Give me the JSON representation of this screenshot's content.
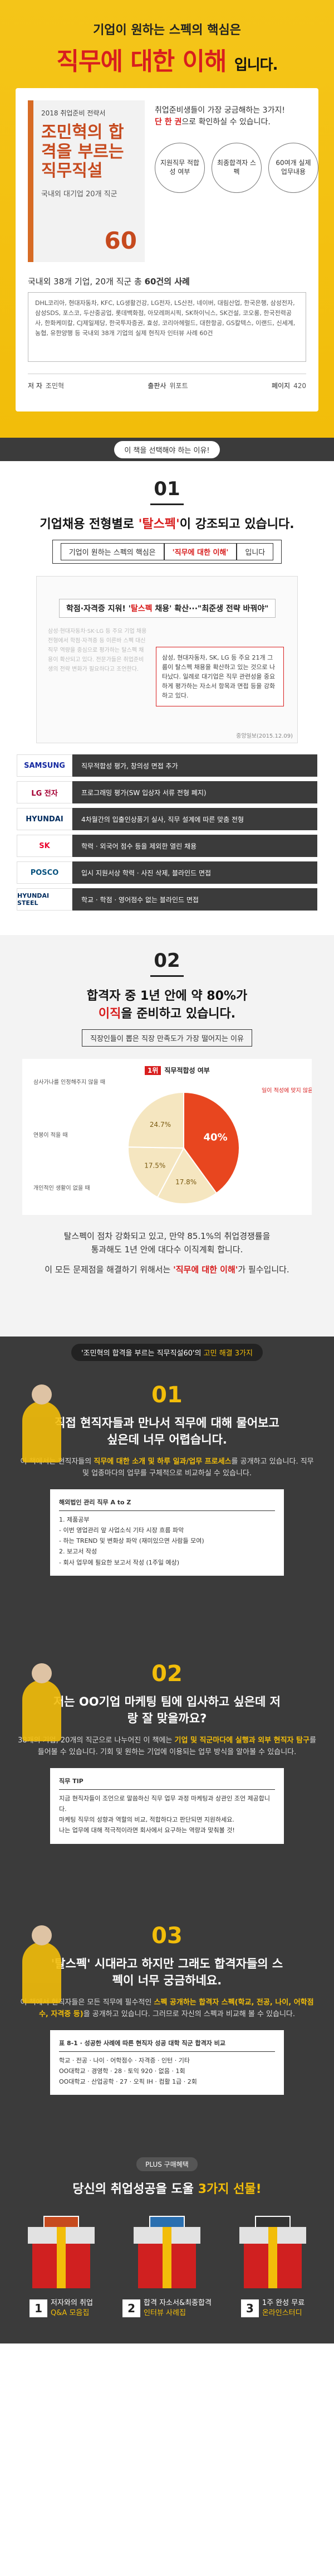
{
  "hero": {
    "headline": "기업이 원하는 스펙의 핵심은",
    "title_hl": "직무에 대한 이해",
    "title_end": "입니다.",
    "book": {
      "series": "2018 취업준비 전략서",
      "title": "조민혁의 합격을 부르는 직무직설",
      "subtitle": "국내외 대기업 20개 직군",
      "badge": "60"
    },
    "intro_1": "취업준비생들이 가장 궁금해하는 3가지!",
    "intro_em": "단 한 권",
    "intro_2": "으로 확인하실 수 있습니다.",
    "circles": [
      "지원직무 적합성 여부",
      "최종합격자 스펙",
      "60여개 실제 업무내용"
    ],
    "case_title_1": "국내외 38개 기업, 20개 직군 총 ",
    "case_title_em": "60건의 사례",
    "case_body": "DHL코리아, 현대자동차, KFC, LG생활건강, LG전자, LS산전, 네이버, 대림산업, 한국은행, 삼성전자, 삼성SDS, 포스코, 두산중공업, 롯데백화점, 아모레퍼시픽, SK하이닉스, SK건설, 코오롱, 한국전력공사, 한화케미칼, CJ제일제당, 한국투자증권, 효성, 코리아헤럴드, 대한항공, GS칼텍스, 이랜드, 신세계, 농협, 유한양행 등 국내외 38개 기업의 실제 현직자 인터뷰 사례 60건",
    "meta": {
      "author_label": "저 자",
      "author": "조민혁",
      "publisher_label": "출판사",
      "publisher": "위포트",
      "pages_label": "페이지",
      "pages": "420"
    }
  },
  "why_pill": "이 책을 선택해야 하는 이유!",
  "s01": {
    "num": "01",
    "head_1": "기업채용 전형별로 ",
    "head_hl": "'탈스펙'",
    "head_2": "이 강조되고 있습니다.",
    "sub_1": "기업이 원하는 스펙의 핵심은 ",
    "sub_em": "'직무에 대한 이해'",
    "sub_2": "입니다",
    "news_tag_1": "학점·자격증 지워! '",
    "news_tag_hl": "탈스펙",
    "news_tag_2": " 채용' 확산···\"최준생 전략 바꿔야\"",
    "news_blur": "삼성·현대자동차·SK·LG 등 주요 기업 채용 전형에서 학점·자격증 등 이른바 스펙 대신 직무 역량을 중심으로 평가하는 탈스펙 채용이 확산되고 있다. 전문가들은 취업준비생의 전략 변화가 필요하다고 조언한다.",
    "news_quote": "삼성, 현대자동차, SK, LG 등 주요 21개 그룹이 탈스펙 채용을 확산하고 있는 것으로 나타났다. 일례로 대기업은 직무 관련성을 중요하게 평가하는 자소서 항목과 면접 등을 강화하고 있다.",
    "news_src": "중앙일보(2015.12.09)",
    "logos": [
      {
        "name": "SAMSUNG",
        "color": "#1428a0",
        "desc": "직무적합성 평가, 창의성 면접 추가"
      },
      {
        "name": "LG 전자",
        "color": "#a50034",
        "desc": "프로그래밍 평가(SW 입상자 서류 전형 폐지)"
      },
      {
        "name": "HYUNDAI",
        "color": "#002c5f",
        "desc": "4차월간의 입출인상품기 실사, 직무 설계에 따른 맞춤 전형"
      },
      {
        "name": "SK",
        "color": "#ea002c",
        "desc": "학력 · 외국어 점수 등을 제외한 열린 채용"
      },
      {
        "name": "POSCO",
        "color": "#05507d",
        "desc": "입시 지원서상 학력 · 사진 삭제, 블라인드 면접"
      },
      {
        "name": "HYUNDAI STEEL",
        "color": "#002c5f",
        "desc": "학교 · 학점 · 영어점수 없는 블라인드 면접"
      }
    ]
  },
  "s02": {
    "num": "02",
    "head_1": "합격자 중 1년 안에 약 80%가",
    "head_hl": "이직",
    "head_2": "을 준비하고 있습니다.",
    "sub": "직장인들이 뽑은 직장 만족도가 가장 떨어지는 이유",
    "chart_rank": "1위",
    "chart_label": "직무적합성 여부",
    "body_1": "탈스펙이 점차 강화되고 있고, 만약 85.1%의 취업경쟁률을",
    "body_2": "통과해도 1년 안에 대다수 이직계획 합니다.",
    "body_3": "이 모든 문제점을 해결하기 위해서는 ",
    "body_em": "'직무에 대한 이해'",
    "body_4": "가 필수입니다."
  },
  "chart_data": {
    "type": "pie",
    "title": "직무적합성 여부",
    "slices": [
      {
        "label": "일이 적성에 맞지 않음 때",
        "value": 40,
        "color": "#e8461f"
      },
      {
        "label": "삼사가나를 인정해주지 않을 때",
        "value": 17.8,
        "color": "#f5e6c0"
      },
      {
        "label": "연봉이 적을 때",
        "value": 17.5,
        "color": "#f5e6c0"
      },
      {
        "label": "개인적인 생활이 없을 때",
        "value": 24.7,
        "color": "#f5e6c0"
      }
    ]
  },
  "secrets_pill_1": "'조민혁의 합격을 부르는 직무직설60'의 ",
  "secrets_pill_hl": "고민 해결 3가지",
  "q1": {
    "num": "01",
    "head": "직접 현직자들과 만나서 직무에 대해 물어보고 싶은데 너무 어렵습니다.",
    "body_1": "이 책에서는 현직자들의 ",
    "body_em": "직무에 대한 소개 및 하루 일과/업무 프로세스",
    "body_2": "를 공개하고 있습니다. 직무 및 업종마다의 업무를 구체적으로 비교하실 수 있습니다.",
    "paper_title": "해외법인 관리 직무 A to Z",
    "paper_lines": [
      "1. 제품공부",
      "- 이번 영업관리 앞 사업소식 기타 시장 흐름 파악",
      "- 하는 TREND 및 변화상 파악 (재미있으면 사람들 모여)",
      "2. 보고서 작성",
      "- 회사 업무에 필요한 보고서 작성 (1주일 예상)"
    ]
  },
  "q2": {
    "num": "02",
    "head": "저는 OO기업 마케팅 팀에 입사하고 싶은데 저랑 잘 맞을까요?",
    "body_1": "38개의 기업, 20개의 직군으로 나누어진 이 책에는 ",
    "body_em": "기업 및 직군마다에 실행과 외부 현직자 탐구",
    "body_2": "를 들어볼 수 있습니다. 기회 및 원하는 기업에 이용되는 업무 방식을 알아볼 수 있습니다.",
    "paper_title": "직무 TIP",
    "paper_lines": [
      "지금 현직자들이 조언으로 말씀하신 직무 업무 과정 마케팅과 상관인 조언 제공합니다.",
      "마케팅 직무의 성향과 역할의 비교, 적합하다고 판단되면 지원하세요.",
      "나는 업무에 대해 적극적이라면 회사에서 요구하는 역량과 맞춰볼 것!"
    ]
  },
  "q3": {
    "num": "03",
    "head": "'탈스펙' 시대라고 하지만 그래도 합격자들의 스펙이 너무 궁금하네요.",
    "body_1": "이 책에서 현직자들은 모든 직무에 필수적인 ",
    "body_em": "스펙 공개하는 합격자 스펙(학교, 전공, 나이, 어학점수, 자격증 등)",
    "body_2": "을 공개하고 있습니다. 그러므로 자신의 스펙과 비교해 볼 수 있습니다.",
    "paper_title": "표 8-1 · 성공한 사례에 따른 현직자 성공 대학 직군 합격자 비교",
    "paper_lines": [
      "학교 · 전공 · 나이 · 어학점수 · 자격증 · 인턴 · 기타",
      "OO대학교 · 경영학 · 28 · 토익 920 · 없음 · 1회",
      "OO대학교 · 산업공학 · 27 · 오픽 IH · 컴활 1급 · 2회"
    ]
  },
  "plus": {
    "pill": "PLUS 구매혜택",
    "head_1": "당신의 취업성공을 도울 ",
    "head_hl": "3가지 선물!",
    "gifts": [
      {
        "num": "1",
        "line1": "저자와의 취업",
        "line2": "Q&A 모음집"
      },
      {
        "num": "2",
        "line1": "합격 자소서&최종합격",
        "line2": "인터뷰 사례집"
      },
      {
        "num": "3",
        "line1": "1주 완성 무료",
        "line2": "온라인스터디"
      }
    ]
  }
}
